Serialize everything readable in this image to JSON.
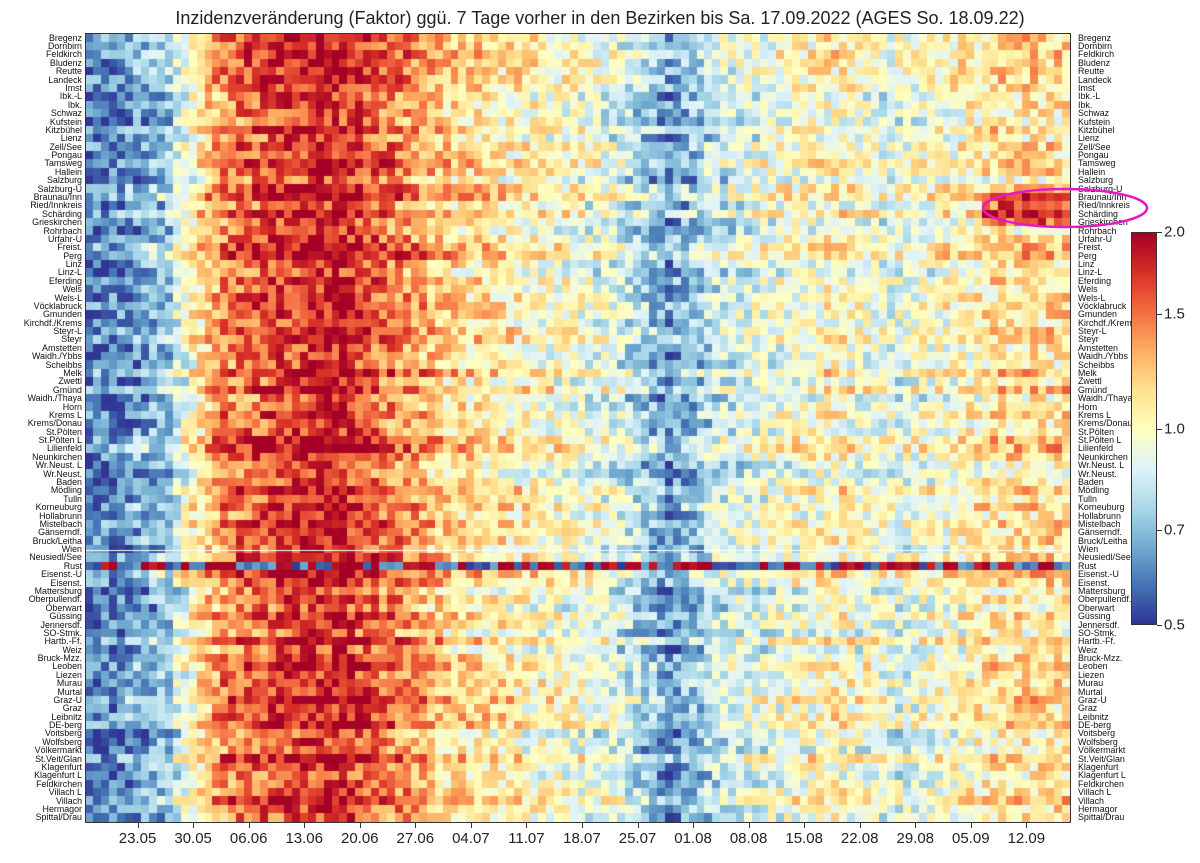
{
  "chart_data": {
    "type": "heatmap",
    "title": "Inzidenzveränderung (Faktor) ggü. 7 Tage vorher in den Bezirken bis Sa. 17.09.2022 (AGES So. 18.09.22)",
    "xlabel": "",
    "ylabel": "",
    "x_tick_labels": [
      "23.05",
      "30.05",
      "06.06",
      "13.06",
      "20.06",
      "27.06",
      "04.07",
      "11.07",
      "18.07",
      "25.07",
      "01.08",
      "08.08",
      "15.08",
      "22.08",
      "29.08",
      "05.09",
      "12.09"
    ],
    "x_range_dates": [
      "2022-05-17",
      "2022-09-17"
    ],
    "districts": [
      "Bregenz",
      "Dornbirn",
      "Feldkirch",
      "Bludenz",
      "Reutte",
      "Landeck",
      "Imst",
      "Ibk.-L",
      "Ibk.",
      "Schwaz",
      "Kufstein",
      "Kitzbühel",
      "Lienz",
      "Zell/See",
      "Pongau",
      "Tamsweg",
      "Hallein",
      "Salzburg",
      "Salzburg-U",
      "Braunau/Inn",
      "Ried/Innkreis",
      "Schärding",
      "Grieskirchen",
      "Rohrbach",
      "Urfahr-U",
      "Freist.",
      "Perg",
      "Linz",
      "Linz-L",
      "Eferding",
      "Wels",
      "Wels-L",
      "Vöcklabruck",
      "Gmunden",
      "Kirchdf./Krems",
      "Steyr-L",
      "Steyr",
      "Amstetten",
      "Waidh./Ybbs",
      "Scheibbs",
      "Melk",
      "Zwettl",
      "Gmünd",
      "Waidh./Thaya",
      "Horn",
      "Krems L",
      "Krems/Donau",
      "St.Pölten",
      "St.Pölten L",
      "Lilienfeld",
      "Neunkirchen",
      "Wr.Neust. L",
      "Wr.Neust.",
      "Baden",
      "Mödling",
      "Tulln",
      "Korneuburg",
      "Hollabrunn",
      "Mistelbach",
      "Gänserndf.",
      "Bruck/Leitha",
      "Wien",
      "Neusiedl/See",
      "Rust",
      "Eisenst.-U",
      "Eisenst.",
      "Mattersburg",
      "Oberpullendf.",
      "Oberwart",
      "Güssing",
      "Jennersdf.",
      "SO-Stmk.",
      "Hartb.-Ff.",
      "Weiz",
      "Bruck-Mzz.",
      "Leoben",
      "Liezen",
      "Murau",
      "Murtal",
      "Graz-U",
      "Graz",
      "Leibnitz",
      "DE-berg",
      "Voitsberg",
      "Wolfsberg",
      "Völkermarkt",
      "St.Veit/Glan",
      "Klagenfurt",
      "Klagenfurt L",
      "Feldkirchen",
      "Villach L",
      "Villach",
      "Hermagor",
      "Spittal/Drau"
    ],
    "colorbar": {
      "vmin": 0.5,
      "vmax": 2.0,
      "scale": "log",
      "colormap": "RdYlBu_r",
      "ticks": [
        "0.5",
        "0.7",
        "1.0",
        "1.5",
        "2.0"
      ]
    },
    "annotation": {
      "type": "ellipse",
      "color": "#e619c4",
      "highlighted_districts": [
        "Braunau/Inn",
        "Ried/Innkreis",
        "Schärding"
      ]
    },
    "period_profile": {
      "description_values_by_week": [
        0.6,
        0.75,
        1.45,
        1.7,
        1.85,
        1.5,
        1.2,
        1.1,
        1.0,
        0.9,
        0.65,
        0.85,
        0.95,
        1.05,
        0.9,
        1.0,
        1.15
      ],
      "week_labels": [
        "23.05",
        "30.05",
        "06.06",
        "13.06",
        "20.06",
        "27.06",
        "04.07",
        "11.07",
        "18.07",
        "25.07",
        "01.08",
        "08.08",
        "15.08",
        "22.08",
        "29.08",
        "05.09",
        "12.09"
      ]
    }
  }
}
